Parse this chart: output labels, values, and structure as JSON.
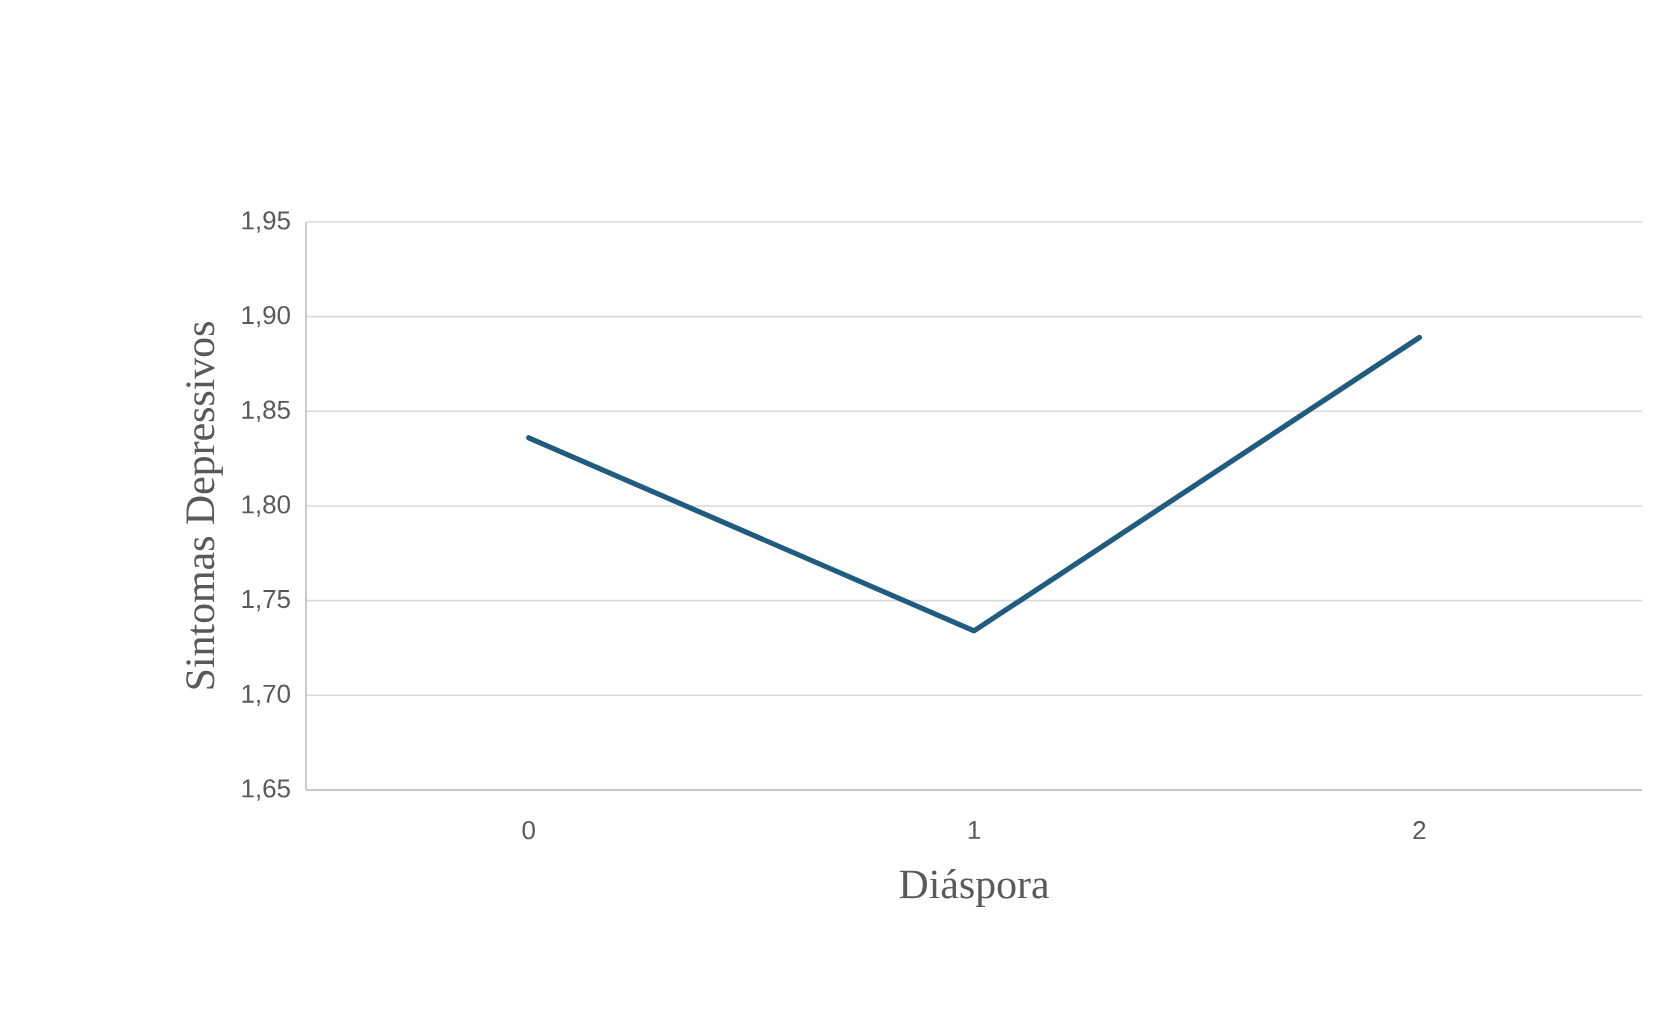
{
  "chart_data": {
    "type": "line",
    "xlabel": "Diáspora",
    "ylabel": "Sintomas Depressivos",
    "categories": [
      "0",
      "1",
      "2"
    ],
    "series": [
      {
        "color": "#1f5c7f",
        "values": [
          1.836,
          1.734,
          1.889
        ]
      }
    ],
    "ylim": [
      1.65,
      1.95
    ],
    "yticks": [
      {
        "value": 1.65,
        "label": "1,65"
      },
      {
        "value": 1.7,
        "label": "1,70"
      },
      {
        "value": 1.75,
        "label": "1,75"
      },
      {
        "value": 1.8,
        "label": "1,80"
      },
      {
        "value": 1.85,
        "label": "1,85"
      },
      {
        "value": 1.9,
        "label": "1,90"
      },
      {
        "value": 1.95,
        "label": "1,95"
      }
    ],
    "grid": "y"
  }
}
